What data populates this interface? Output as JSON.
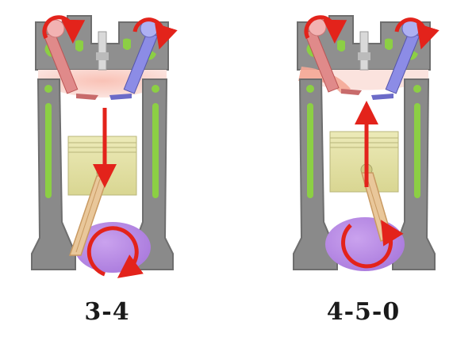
{
  "stages": [
    {
      "label": "3-4",
      "stroke": "power",
      "piston_direction": "down",
      "exhaust_flow": false
    },
    {
      "label": "4-5-0",
      "stroke": "exhaust",
      "piston_direction": "up",
      "exhaust_flow": true
    }
  ],
  "colors": {
    "block": "#8a8a8a",
    "block_dark": "#6e6e6e",
    "coolant": "#8ccf44",
    "intake_valve": "#8c8ce6",
    "exhaust_valve": "#e08a8a",
    "piston": "#e4e2a4",
    "rod": "#e9c79a",
    "crank": "#b889e6",
    "arrow": "#e3231b",
    "hot_gas": "#f7b5a8"
  },
  "icons": [
    "rotation-arrow-icon",
    "direction-arrow-icon",
    "spark-plug-icon"
  ]
}
